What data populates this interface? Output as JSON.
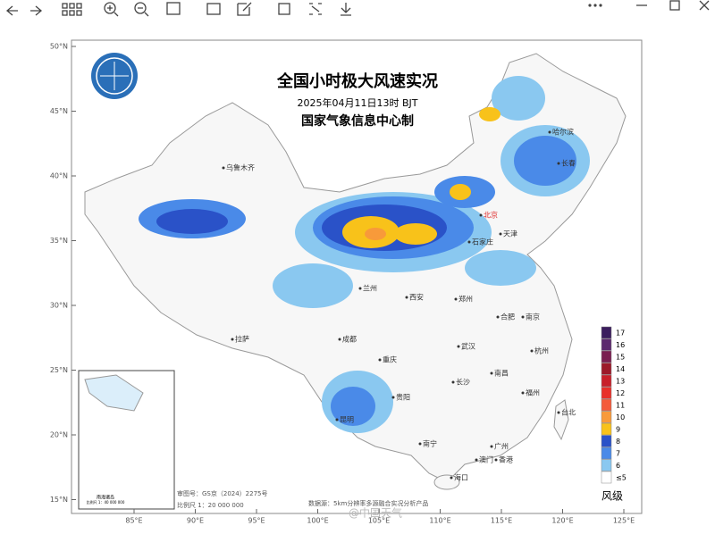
{
  "map": {
    "title": "全国小时极大风速实况",
    "time": "2025年04月11日13时 BJT",
    "issuer": "国家气象信息中心制",
    "legend": {
      "title": "风级",
      "levels": [
        {
          "label": "17",
          "color": "#3b1e5e"
        },
        {
          "label": "16",
          "color": "#5c2a6e"
        },
        {
          "label": "15",
          "color": "#7a1e50"
        },
        {
          "label": "14",
          "color": "#9c1a2a"
        },
        {
          "label": "13",
          "color": "#c8202a"
        },
        {
          "label": "12",
          "color": "#e8302a"
        },
        {
          "label": "11",
          "color": "#f45a3a"
        },
        {
          "label": "10",
          "color": "#f89a3a"
        },
        {
          "label": "9",
          "color": "#f8c21a"
        },
        {
          "label": "8",
          "color": "#2a52c8"
        },
        {
          "label": "7",
          "color": "#4a8ae8"
        },
        {
          "label": "6",
          "color": "#8ac8f0"
        },
        {
          "label": "≤5",
          "color": "#ffffff"
        }
      ]
    },
    "lat_labels": [
      "50°N",
      "45°N",
      "40°N",
      "35°N",
      "30°N",
      "25°N",
      "20°N",
      "15°N"
    ],
    "lon_labels": [
      "85°E",
      "90°E",
      "95°E",
      "100°E",
      "105°E",
      "110°E",
      "115°E",
      "120°E",
      "125°E"
    ],
    "cities": [
      "乌鲁木齐",
      "哈尔滨",
      "长春",
      "北京",
      "天津",
      "石家庄",
      "兰州",
      "西安",
      "郑州",
      "合肥",
      "南京",
      "杭州",
      "拉萨",
      "成都",
      "重庆",
      "武汉",
      "长沙",
      "南昌",
      "福州",
      "台北",
      "昆明",
      "贵阳",
      "南宁",
      "广州",
      "香港",
      "澳门",
      "海口"
    ],
    "inset": {
      "title": "南海诸岛",
      "scale": "比例尺 1：40 000 000"
    },
    "footer": {
      "approval": "审图号：GS京（2024）2275号",
      "scale": "比例尺 1：20 000 000",
      "source": "数据源：5km分辨率多源融合实况分析产品",
      "watermark": "@中国天气"
    }
  }
}
